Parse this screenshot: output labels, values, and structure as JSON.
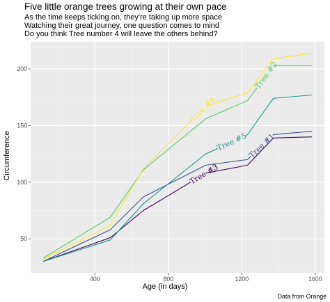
{
  "chart_data": {
    "type": "line",
    "title": "Five little orange trees growing at their own pace",
    "subtitle": [
      "As the time keeps ticking on, they're taking up more space",
      "Watching their great journey, one question comes to mind",
      "Do you think Tree number 4 will leave the others behind?"
    ],
    "xlabel": "Age (in days)",
    "ylabel": "Circumference",
    "caption": "Data from Orange",
    "xlim": [
      50,
      1650
    ],
    "ylim": [
      20,
      224
    ],
    "xticks": [
      400,
      800,
      1200,
      1600
    ],
    "yticks": [
      50,
      100,
      150,
      200
    ],
    "grid": true,
    "legend": "none (direct labels on lines)",
    "x": [
      118,
      484,
      664,
      1004,
      1231,
      1372,
      1582
    ],
    "series": [
      {
        "name": "Tree #1",
        "color": "#3B528B",
        "values": [
          30,
          58,
          87,
          115,
          120,
          142,
          145
        ]
      },
      {
        "name": "Tree #2",
        "color": "#5EC962",
        "values": [
          33,
          69,
          111,
          156,
          172,
          203,
          203
        ]
      },
      {
        "name": "Tree #3",
        "color": "#440154",
        "values": [
          30,
          51,
          75,
          108,
          115,
          139,
          140
        ]
      },
      {
        "name": "Tree #4",
        "color": "#FDE725",
        "values": [
          32,
          62,
          112,
          167,
          179,
          209,
          214
        ]
      },
      {
        "name": "Tree #5",
        "color": "#21908C",
        "values": [
          30,
          49,
          81,
          125,
          142,
          174,
          177
        ]
      }
    ]
  },
  "colors": {
    "panel_background": "#EBEBEB",
    "grid_major": "#FFFFFF",
    "grid_minor": "#F5F5F5"
  }
}
